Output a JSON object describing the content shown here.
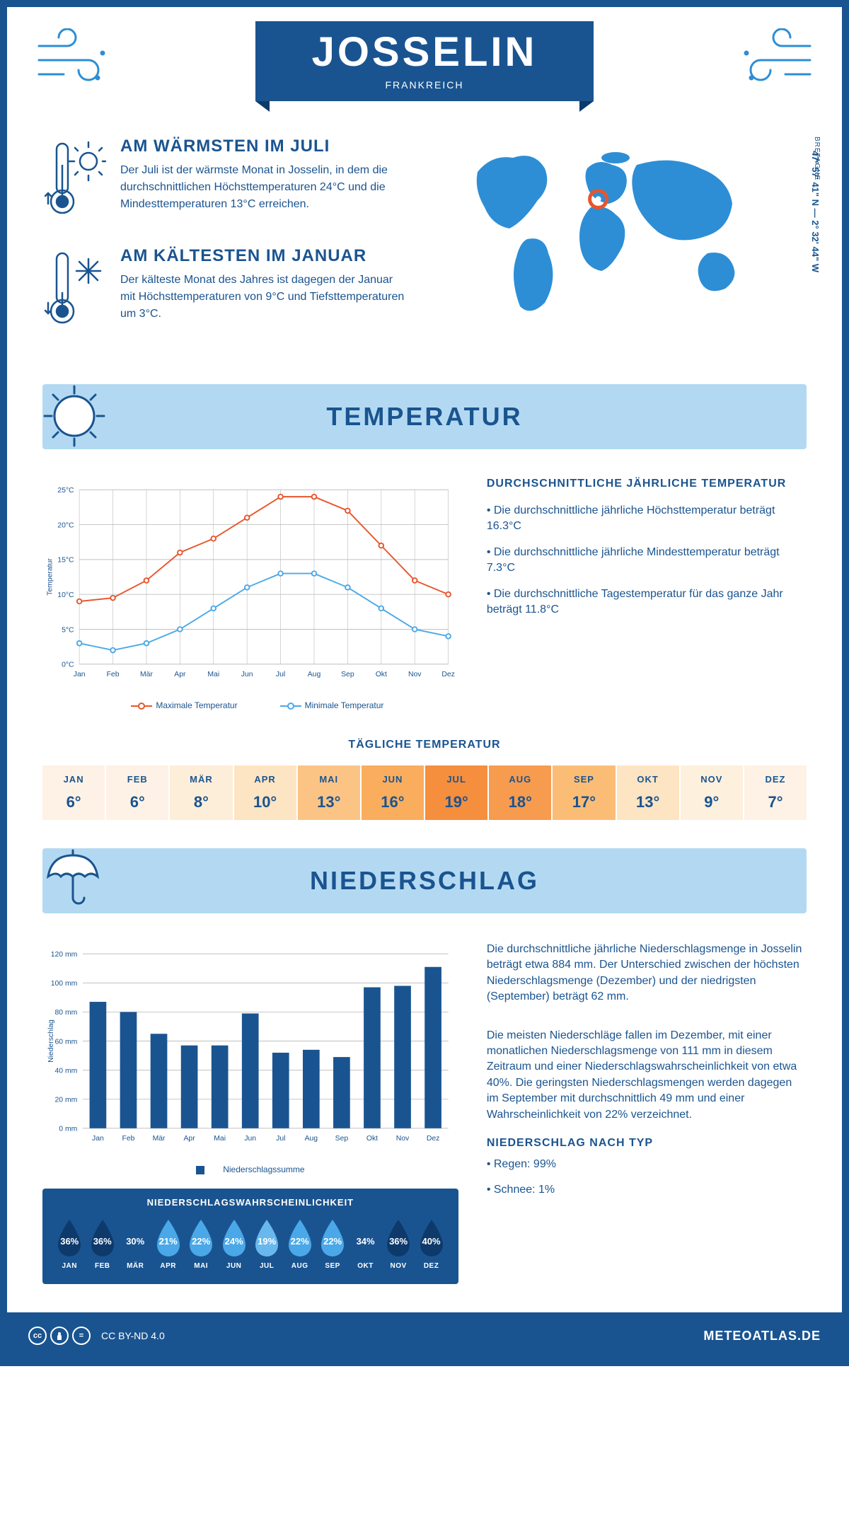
{
  "header": {
    "city": "JOSSELIN",
    "country": "FRANKREICH"
  },
  "intro": {
    "warm": {
      "title": "AM WÄRMSTEN IM JULI",
      "text": "Der Juli ist der wärmste Monat in Josselin, in dem die durchschnittlichen Höchsttemperaturen 24°C und die Mindesttemperaturen 13°C erreichen."
    },
    "cold": {
      "title": "AM KÄLTESTEN IM JANUAR",
      "text": "Der kälteste Monat des Jahres ist dagegen der Januar mit Höchsttemperaturen von 9°C und Tiefsttemperaturen um 3°C."
    },
    "coords": "47° 57' 41\" N — 2° 32' 44\" W",
    "region": "BRETAGNE",
    "marker": {
      "cx_pct": 47,
      "cy_pct": 34
    }
  },
  "temperature": {
    "section_title": "TEMPERATUR",
    "chart": {
      "type": "line",
      "months": [
        "Jan",
        "Feb",
        "Mär",
        "Apr",
        "Mai",
        "Jun",
        "Jul",
        "Aug",
        "Sep",
        "Okt",
        "Nov",
        "Dez"
      ],
      "series": [
        {
          "name": "Maximale Temperatur",
          "color": "#e8552b",
          "values": [
            9,
            9.5,
            12,
            16,
            18,
            21,
            24,
            24,
            22,
            17,
            12,
            10
          ]
        },
        {
          "name": "Minimale Temperatur",
          "color": "#4aa8e8",
          "values": [
            3,
            2,
            3,
            5,
            8,
            11,
            13,
            13,
            11,
            8,
            5,
            4
          ]
        }
      ],
      "ylim": [
        0,
        25
      ],
      "ytick_step": 5,
      "ylabel": "Temperatur",
      "axis_color": "#c0c0c0",
      "axis_label_color": "#1a5490",
      "tick_fontsize": 11,
      "label_fontsize": 11,
      "line_width": 2,
      "marker_radius": 3.5
    },
    "stats": {
      "title": "DURCHSCHNITTLICHE JÄHRLICHE TEMPERATUR",
      "lines": [
        "• Die durchschnittliche jährliche Höchsttemperatur beträgt 16.3°C",
        "• Die durchschnittliche jährliche Mindesttemperatur beträgt 7.3°C",
        "• Die durchschnittliche Tagestemperatur für das ganze Jahr beträgt 11.8°C"
      ]
    },
    "daily": {
      "title": "TÄGLICHE TEMPERATUR",
      "months": [
        "JAN",
        "FEB",
        "MÄR",
        "APR",
        "MAI",
        "JUN",
        "JUL",
        "AUG",
        "SEP",
        "OKT",
        "NOV",
        "DEZ"
      ],
      "values": [
        "6°",
        "6°",
        "8°",
        "10°",
        "13°",
        "16°",
        "19°",
        "18°",
        "17°",
        "13°",
        "9°",
        "7°"
      ],
      "colors": [
        "#fdf2e5",
        "#fdf2e5",
        "#fdeed9",
        "#fde4c2",
        "#fbc485",
        "#f9ad5d",
        "#f58e3d",
        "#f79b4f",
        "#fbbd76",
        "#fde4c2",
        "#fdf0dd",
        "#fdf2e5"
      ]
    }
  },
  "precipitation": {
    "section_title": "NIEDERSCHLAG",
    "chart": {
      "type": "bar",
      "months": [
        "Jan",
        "Feb",
        "Mär",
        "Apr",
        "Mai",
        "Jun",
        "Jul",
        "Aug",
        "Sep",
        "Okt",
        "Nov",
        "Dez"
      ],
      "values": [
        87,
        80,
        65,
        57,
        57,
        79,
        52,
        54,
        49,
        97,
        98,
        111
      ],
      "bar_color": "#1a5490",
      "ylim": [
        0,
        120
      ],
      "ytick_step": 20,
      "ylabel": "Niederschlag",
      "bar_width": 0.55,
      "legend": "Niederschlagssumme",
      "axis_color": "#c0c0c0",
      "axis_label_color": "#1a5490",
      "tick_fontsize": 11,
      "label_fontsize": 11
    },
    "text1": "Die durchschnittliche jährliche Niederschlagsmenge in Josselin beträgt etwa 884 mm. Der Unterschied zwischen der höchsten Niederschlagsmenge (Dezember) und der niedrigsten (September) beträgt 62 mm.",
    "text2": "Die meisten Niederschläge fallen im Dezember, mit einer monatlichen Niederschlagsmenge von 111 mm in diesem Zeitraum und einer Niederschlagswahrscheinlichkeit von etwa 40%. Die geringsten Niederschlagsmengen werden dagegen im September mit durchschnittlich 49 mm und einer Wahrscheinlichkeit von 22% verzeichnet.",
    "prob": {
      "title": "NIEDERSCHLAGSWAHRSCHEINLICHKEIT",
      "months": [
        "JAN",
        "FEB",
        "MÄR",
        "APR",
        "MAI",
        "JUN",
        "JUL",
        "AUG",
        "SEP",
        "OKT",
        "NOV",
        "DEZ"
      ],
      "values": [
        "36%",
        "36%",
        "30%",
        "21%",
        "22%",
        "24%",
        "19%",
        "22%",
        "22%",
        "34%",
        "36%",
        "40%"
      ],
      "colors": [
        "#0d3a6b",
        "#0d3a6b",
        "#1a5490",
        "#4aa8e8",
        "#4aa8e8",
        "#4aa8e8",
        "#68b8ee",
        "#4aa8e8",
        "#4aa8e8",
        "#1a5490",
        "#0d3a6b",
        "#0d3a6b"
      ]
    },
    "by_type": {
      "title": "NIEDERSCHLAG NACH TYP",
      "lines": [
        "• Regen: 99%",
        "• Schnee: 1%"
      ]
    }
  },
  "footer": {
    "license": "CC BY-ND 4.0",
    "site": "METEOATLAS.DE"
  },
  "palette": {
    "primary": "#1a5490",
    "light": "#b3d9f2",
    "map": "#2d8ed6",
    "marker": "#e8552b"
  }
}
